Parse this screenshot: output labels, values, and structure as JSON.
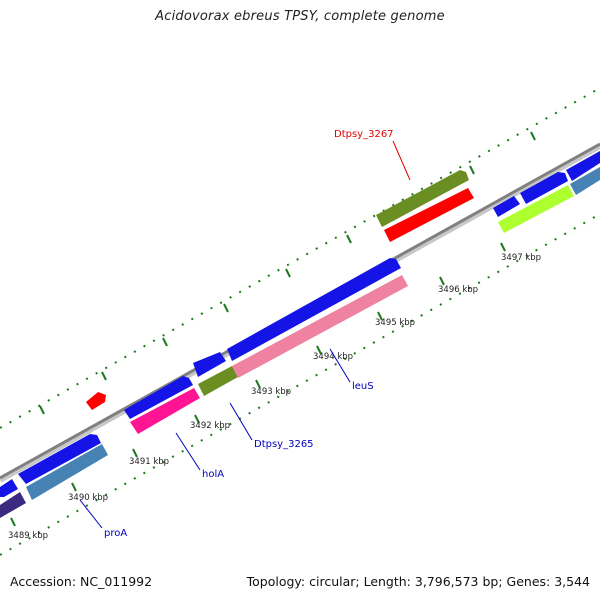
{
  "title": "Acidovorax ebreus TPSY, complete genome",
  "footer": {
    "accession": "Accession: NC_011992",
    "topology": "Topology: circular; Length: 3,796,573 bp; Genes: 3,544"
  },
  "colors": {
    "backbone": "#8f8f8f",
    "blue_gene": "#1414e6",
    "olive_gene": "#6b8e23",
    "red_gene": "#ff0000",
    "pink_gene": "#ee82a0",
    "magenta_gene": "#ff1493",
    "steel_gene": "#4682b4",
    "lime_gene": "#adff2f",
    "navy_gene": "#3b2a80",
    "tick_green": "#1e7a1e",
    "label_blue": "#0000c0",
    "label_red": "#e00000"
  },
  "ticks": [
    {
      "label": "3489 kbp"
    },
    {
      "label": "3490 kbp"
    },
    {
      "label": "3491 kbp"
    },
    {
      "label": "3492 kbp"
    },
    {
      "label": "3493 kbp"
    },
    {
      "label": "3494 kbp"
    },
    {
      "label": "3495 kbp"
    },
    {
      "label": "3496 kbp"
    },
    {
      "label": "3497 kbp"
    }
  ],
  "gene_labels": [
    {
      "name": "proA",
      "color": "blue"
    },
    {
      "name": "holA",
      "color": "blue"
    },
    {
      "name": "Dtpsy_3265",
      "color": "blue"
    },
    {
      "name": "leuS",
      "color": "blue"
    },
    {
      "name": "Dtpsy_3267",
      "color": "red"
    }
  ]
}
